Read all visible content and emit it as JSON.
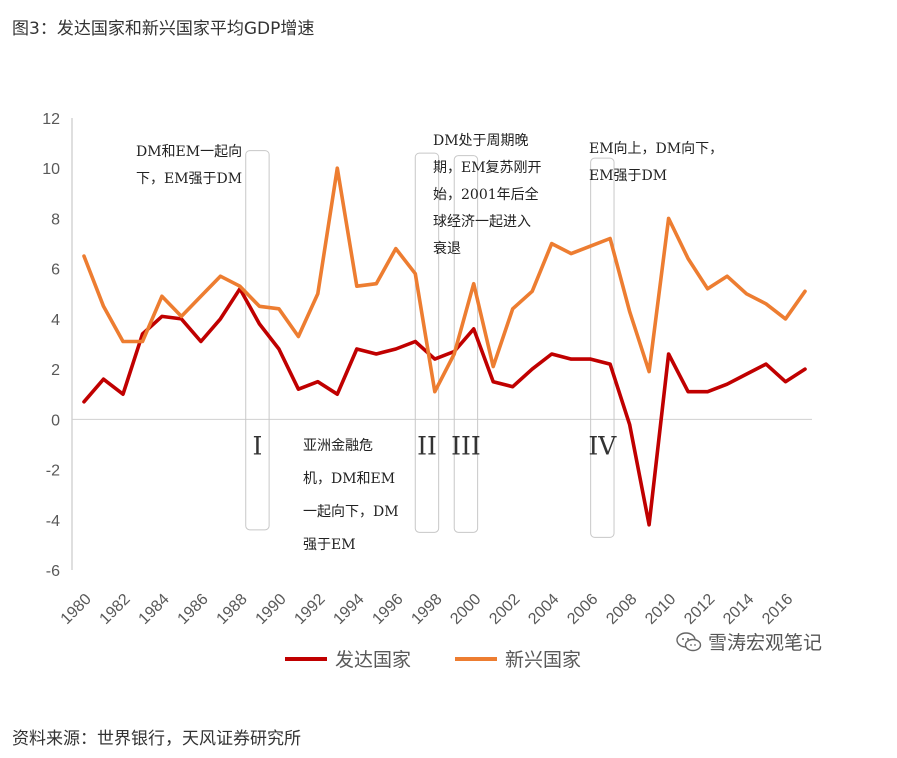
{
  "title": "图3：发达国家和新兴国家平均GDP增速",
  "source": "资料来源：世界银行，天风证券研究所",
  "watermark": "雪涛宏观笔记",
  "annotations": {
    "a1": [
      "DM和EM一起向",
      "下，EM强于DM"
    ],
    "a2": [
      "DM处于周期晚",
      "期，EM复苏刚开",
      "始，2001年后全",
      "球经济一起进入",
      "衰退"
    ],
    "a3": [
      "EM向上，DM向下，",
      "EM强于DM"
    ],
    "a4": [
      "亚洲金融危",
      "机，DM和EM",
      "一起向下，DM",
      "强于EM"
    ]
  },
  "colors": {
    "developed": "#c00000",
    "emerging": "#ed7d31",
    "box": "#c8c8c8",
    "grid": "#d9d9d9"
  },
  "chart_data": {
    "type": "line",
    "x": [
      1980,
      1981,
      1982,
      1983,
      1984,
      1985,
      1986,
      1987,
      1988,
      1989,
      1990,
      1991,
      1992,
      1993,
      1994,
      1995,
      1996,
      1997,
      1998,
      1999,
      2000,
      2001,
      2002,
      2003,
      2004,
      2005,
      2006,
      2007,
      2008,
      2009,
      2010,
      2011,
      2012,
      2013,
      2014,
      2015,
      2016,
      2017
    ],
    "series": [
      {
        "name": "发达国家",
        "color": "#c00000",
        "values": [
          0.7,
          1.6,
          1.0,
          3.4,
          4.1,
          4.0,
          3.1,
          4.0,
          5.2,
          3.8,
          2.8,
          1.2,
          1.5,
          1.0,
          2.8,
          2.6,
          2.8,
          3.1,
          2.4,
          2.7,
          3.6,
          1.5,
          1.3,
          2.0,
          2.6,
          2.4,
          2.4,
          2.2,
          -0.2,
          -4.2,
          2.6,
          1.1,
          1.1,
          1.4,
          1.8,
          2.2,
          1.5,
          2.0
        ]
      },
      {
        "name": "新兴国家",
        "color": "#ed7d31",
        "values": [
          6.5,
          4.5,
          3.1,
          3.1,
          4.9,
          4.1,
          4.9,
          5.7,
          5.3,
          4.5,
          4.4,
          3.3,
          5.0,
          10.0,
          5.3,
          5.4,
          6.8,
          5.8,
          1.1,
          2.6,
          5.4,
          2.1,
          4.4,
          5.1,
          7.0,
          6.6,
          6.9,
          7.2,
          4.3,
          1.9,
          8.0,
          6.4,
          5.2,
          5.7,
          5.0,
          4.6,
          4.0,
          5.1
        ]
      }
    ],
    "ylim": [
      -6,
      12
    ],
    "yticks": [
      -6,
      -4,
      -2,
      0,
      2,
      4,
      6,
      8,
      10,
      12
    ],
    "xticks": [
      1980,
      1982,
      1984,
      1986,
      1988,
      1990,
      1992,
      1994,
      1996,
      1998,
      2000,
      2002,
      2004,
      2006,
      2008,
      2010,
      2012,
      2014,
      2016
    ],
    "xlim": [
      1980,
      2017
    ],
    "periods": [
      {
        "label": "I",
        "start": 1988.3,
        "end": 1989.5,
        "top": 10.7,
        "bottom": -4.4
      },
      {
        "label": "II",
        "start": 1997.0,
        "end": 1998.2,
        "top": 10.6,
        "bottom": -4.5
      },
      {
        "label": "III",
        "start": 1999.0,
        "end": 2000.2,
        "top": 10.5,
        "bottom": -4.5
      },
      {
        "label": "IV",
        "start": 2006.0,
        "end": 2007.2,
        "top": 10.4,
        "bottom": -4.7
      }
    ],
    "grid": false,
    "legend_position": "bottom-center"
  }
}
